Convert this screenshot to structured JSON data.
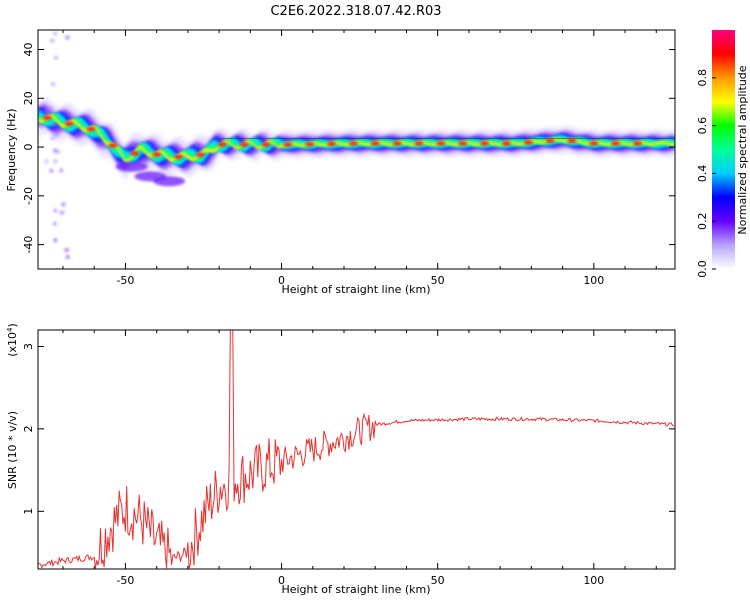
{
  "title": "C2E6.2022.318.07.42.R03",
  "chart_data": [
    {
      "type": "heatmap",
      "xlabel": "Height of straight line (km)",
      "ylabel": "Frequency (Hz)",
      "xlim": [
        -78,
        126
      ],
      "ylim": [
        -50,
        48
      ],
      "xticks": [
        -50,
        0,
        50,
        100
      ],
      "yticks": [
        -40,
        -20,
        0,
        20,
        40
      ],
      "colorbar": {
        "label": "Normalized spectral amplitude",
        "range": [
          0,
          1
        ],
        "ticks": [
          "0.0",
          "0.2",
          "0.4",
          "0.6",
          "0.8"
        ],
        "colors": [
          "#ffffff",
          "#b7a4ff",
          "#6600ff",
          "#0000ff",
          "#00ccff",
          "#00ff99",
          "#00ff00",
          "#ffff00",
          "#ff9900",
          "#ff0000",
          "#ff0080"
        ]
      },
      "ridge": [
        {
          "x": -75,
          "y": 12
        },
        {
          "x": -70,
          "y": 10
        },
        {
          "x": -65,
          "y": 9
        },
        {
          "x": -60,
          "y": 7
        },
        {
          "x": -55,
          "y": 2
        },
        {
          "x": -50,
          "y": -5
        },
        {
          "x": -45,
          "y": -1
        },
        {
          "x": -40,
          "y": -3
        },
        {
          "x": -35,
          "y": -4
        },
        {
          "x": -30,
          "y": -4
        },
        {
          "x": -25,
          "y": -3
        },
        {
          "x": -20,
          "y": 1
        },
        {
          "x": -10,
          "y": 1
        },
        {
          "x": 0,
          "y": 1
        },
        {
          "x": 25,
          "y": 1.5
        },
        {
          "x": 50,
          "y": 1.5
        },
        {
          "x": 75,
          "y": 1.5
        },
        {
          "x": 90,
          "y": 3
        },
        {
          "x": 100,
          "y": 1.5
        },
        {
          "x": 126,
          "y": 1.5
        }
      ],
      "side_lobe": [
        {
          "x": -48,
          "y": -8
        },
        {
          "x": -42,
          "y": -12
        },
        {
          "x": -36,
          "y": -14
        }
      ]
    },
    {
      "type": "line",
      "xlabel": "Height of straight line (km)",
      "ylabel": "SNR (10 * v/v)",
      "y_multiplier": "(x10",
      "y_multiplier_exp": "4",
      "xlim": [
        -78,
        126
      ],
      "ylim": [
        0.3,
        3.2
      ],
      "xticks": [
        -50,
        0,
        50,
        100
      ],
      "yticks": [
        1,
        2,
        3
      ],
      "color": "#e8312f",
      "envelope": [
        {
          "x": -78,
          "y": 0.35
        },
        {
          "x": -70,
          "y": 0.4
        },
        {
          "x": -60,
          "y": 0.45
        },
        {
          "x": -55,
          "y": 0.8
        },
        {
          "x": -50,
          "y": 1.05
        },
        {
          "x": -45,
          "y": 0.9
        },
        {
          "x": -40,
          "y": 0.6
        },
        {
          "x": -35,
          "y": 0.42
        },
        {
          "x": -30,
          "y": 0.5
        },
        {
          "x": -25,
          "y": 0.95
        },
        {
          "x": -20,
          "y": 1.3
        },
        {
          "x": -15,
          "y": 1.4
        },
        {
          "x": -10,
          "y": 1.45
        },
        {
          "x": -5,
          "y": 1.55
        },
        {
          "x": 0,
          "y": 1.6
        },
        {
          "x": 10,
          "y": 1.75
        },
        {
          "x": 20,
          "y": 1.9
        },
        {
          "x": 30,
          "y": 2.05
        },
        {
          "x": 40,
          "y": 2.1
        },
        {
          "x": 60,
          "y": 2.12
        },
        {
          "x": 80,
          "y": 2.12
        },
        {
          "x": 100,
          "y": 2.1
        },
        {
          "x": 126,
          "y": 2.05
        }
      ],
      "spike": {
        "x": -16,
        "y": 3.2
      }
    }
  ]
}
